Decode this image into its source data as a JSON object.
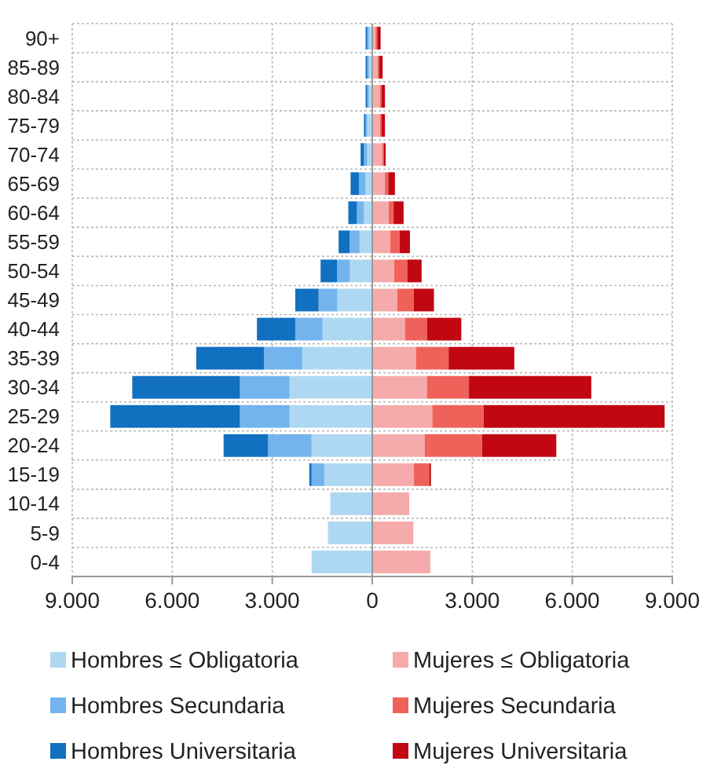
{
  "chart_data": {
    "type": "bar",
    "orientation": "horizontal",
    "stacked": true,
    "grid": true,
    "legend": "bottom",
    "categories": [
      "90+",
      "85-89",
      "80-84",
      "75-79",
      "70-74",
      "65-69",
      "60-64",
      "55-59",
      "50-54",
      "45-49",
      "40-44",
      "35-39",
      "30-34",
      "25-29",
      "20-24",
      "15-19",
      "10-14",
      "5-9",
      "0-4"
    ],
    "xlim": [
      -9000,
      9000
    ],
    "xticks": [
      {
        "value": -9000,
        "label": "9.000"
      },
      {
        "value": -6000,
        "label": "6.000"
      },
      {
        "value": -3000,
        "label": "3.000"
      },
      0,
      {
        "value": 3000,
        "label": "3.000"
      },
      {
        "value": 6000,
        "label": "6.000"
      },
      {
        "value": 9000,
        "label": "9.000"
      }
    ],
    "series": [
      {
        "name": "Hombres ≤ Obligatoria",
        "color": "#aed8f2",
        "values": [
          -100,
          -100,
          -100,
          -150,
          -150,
          -200,
          -250,
          -380,
          -670,
          -1050,
          -1490,
          -2100,
          -2480,
          -2480,
          -1820,
          -1440,
          -1260,
          -1330,
          -1820
        ]
      },
      {
        "name": "Hombres Secundaria",
        "color": "#73b4ef",
        "values": [
          -50,
          -50,
          -50,
          -50,
          -100,
          -200,
          -210,
          -300,
          -390,
          -560,
          -820,
          -1150,
          -1490,
          -1490,
          -1310,
          -380,
          null,
          null,
          null
        ]
      },
      {
        "name": "Hombres Universitaria",
        "color": "#1170c0",
        "values": [
          -50,
          -50,
          -50,
          -50,
          -100,
          -250,
          -260,
          -330,
          -490,
          -700,
          -1150,
          -2030,
          -3230,
          -3890,
          -1330,
          -70,
          null,
          null,
          null
        ]
      },
      {
        "name": "Mujeres ≤ Obligatoria",
        "color": "#f5abab",
        "values": [
          100,
          160,
          230,
          230,
          300,
          380,
          490,
          540,
          660,
          750,
          980,
          1310,
          1640,
          1800,
          1570,
          1250,
          1110,
          1230,
          1740
        ]
      },
      {
        "name": "Mujeres Secundaria",
        "color": "#ee625a",
        "values": [
          50,
          50,
          50,
          50,
          50,
          100,
          150,
          280,
          390,
          490,
          660,
          980,
          1260,
          1540,
          1720,
          460,
          null,
          null,
          null
        ]
      },
      {
        "name": "Mujeres Universitaria",
        "color": "#c00712",
        "values": [
          100,
          100,
          100,
          100,
          50,
          200,
          300,
          310,
          430,
          610,
          1030,
          1970,
          3670,
          5430,
          2230,
          50,
          null,
          null,
          null
        ]
      }
    ]
  }
}
